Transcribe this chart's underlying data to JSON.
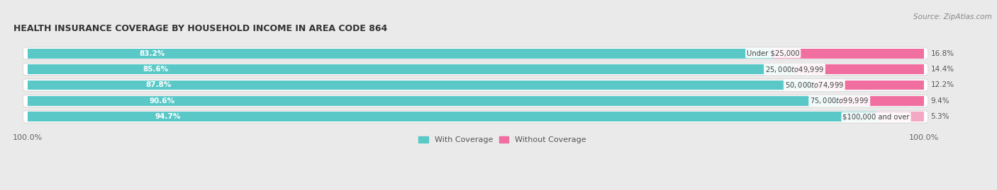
{
  "title": "HEALTH INSURANCE COVERAGE BY HOUSEHOLD INCOME IN AREA CODE 864",
  "source": "Source: ZipAtlas.com",
  "categories": [
    "Under $25,000",
    "$25,000 to $49,999",
    "$50,000 to $74,999",
    "$75,000 to $99,999",
    "$100,000 and over"
  ],
  "with_coverage": [
    83.2,
    85.6,
    87.8,
    90.6,
    94.7
  ],
  "without_coverage": [
    16.8,
    14.4,
    12.2,
    9.4,
    5.3
  ],
  "color_with": "#5BC8C8",
  "color_without": "#F06FA0",
  "color_without_last": "#F4A8C4",
  "bar_height": 0.62,
  "background_color": "#EAEAEA",
  "bar_bg_color": "#FFFFFF",
  "legend_with": "With Coverage",
  "legend_without": "Without Coverage",
  "figsize": [
    14.06,
    2.69
  ],
  "dpi": 100
}
